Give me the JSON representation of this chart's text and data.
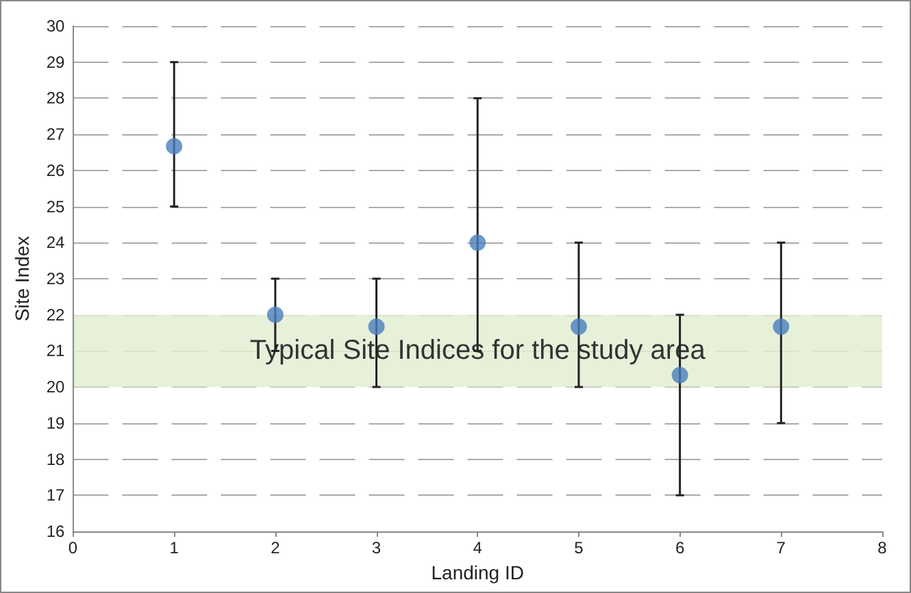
{
  "chart_data": {
    "type": "scatter",
    "xlabel": "Landing ID",
    "ylabel": "Site Index",
    "x": [
      1,
      2,
      3,
      4,
      5,
      6,
      7
    ],
    "series": [
      {
        "color": "#4a7ebb",
        "values": [
          26.67,
          22,
          21.67,
          24,
          21.67,
          20.33,
          21.67
        ],
        "errors": [
          [
            25,
            29
          ],
          [
            21,
            23
          ],
          [
            20,
            23
          ],
          [
            21,
            28
          ],
          [
            20,
            24
          ],
          [
            17,
            22
          ],
          [
            19,
            24
          ]
        ]
      }
    ],
    "xlim": [
      0,
      8
    ],
    "xticks": [
      0,
      1,
      2,
      3,
      4,
      5,
      6,
      7,
      8
    ],
    "ylim": [
      16,
      30
    ],
    "yticks": [
      16,
      17,
      18,
      19,
      20,
      21,
      22,
      23,
      24,
      25,
      26,
      27,
      28,
      29,
      30
    ],
    "grid": "y",
    "marker": "circle",
    "bands": [
      {
        "axis": "y",
        "from": 20,
        "to": 22,
        "label": "Typical Site Indices for the study area",
        "color": "#e3efd3"
      }
    ]
  }
}
